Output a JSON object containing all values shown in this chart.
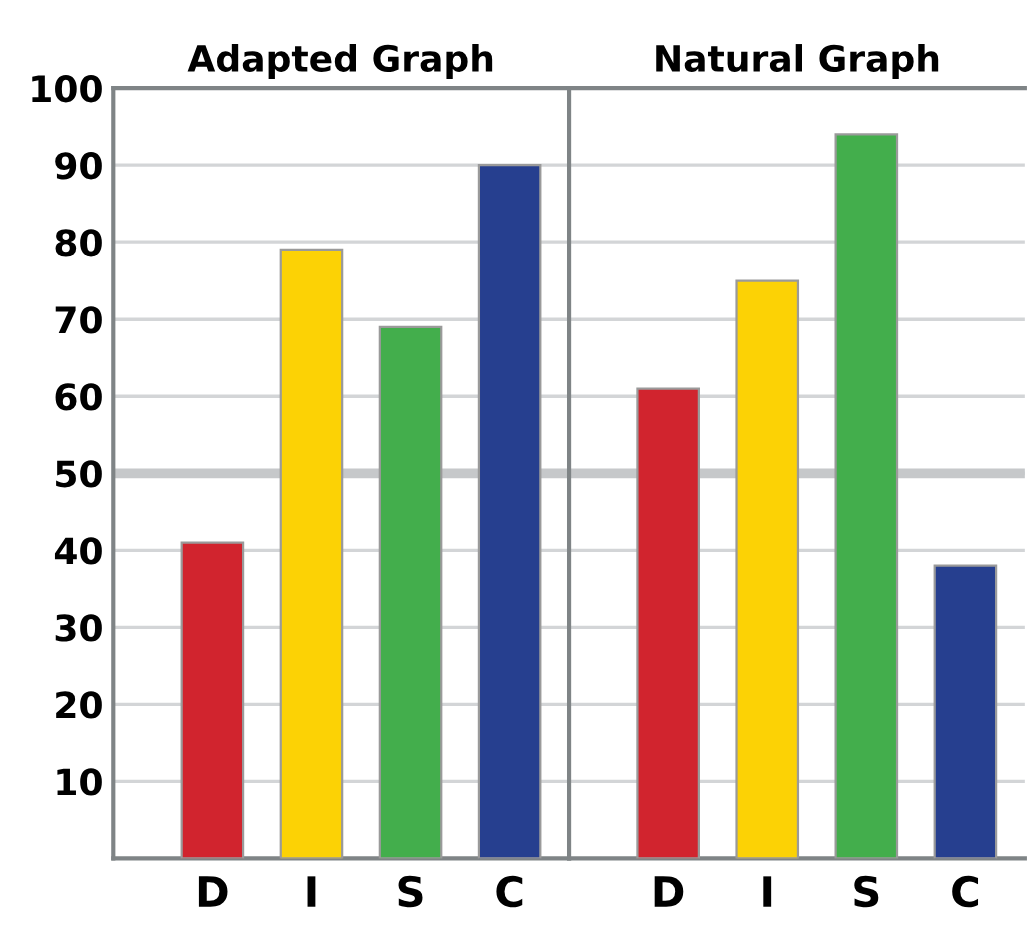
{
  "chart_data": [
    {
      "type": "bar",
      "title": "Adapted Graph",
      "categories": [
        "D",
        "I",
        "S",
        "C"
      ],
      "values": [
        41,
        79,
        69,
        90
      ],
      "colors": [
        "#d1242e",
        "#fcd205",
        "#43ae4c",
        "#263f8f"
      ],
      "ylim": [
        0,
        100
      ],
      "yticks": [
        10,
        20,
        30,
        40,
        50,
        60,
        70,
        80,
        90,
        100
      ],
      "grid": "y",
      "ref_lines": [
        {
          "axis": "y",
          "value": 50,
          "color": "#c6c8ca"
        }
      ]
    },
    {
      "type": "bar",
      "title": "Natural Graph",
      "categories": [
        "D",
        "I",
        "S",
        "C"
      ],
      "values": [
        61,
        75,
        94,
        38
      ],
      "colors": [
        "#d1242e",
        "#fcd205",
        "#43ae4c",
        "#263f8f"
      ],
      "ylim": [
        0,
        100
      ],
      "yticks": [
        10,
        20,
        30,
        40,
        50,
        60,
        70,
        80,
        90,
        100
      ],
      "grid": "y",
      "tick_labels": "x",
      "ref_lines": [
        {
          "axis": "y",
          "value": 50,
          "color": "#c6c8ca"
        }
      ]
    }
  ]
}
